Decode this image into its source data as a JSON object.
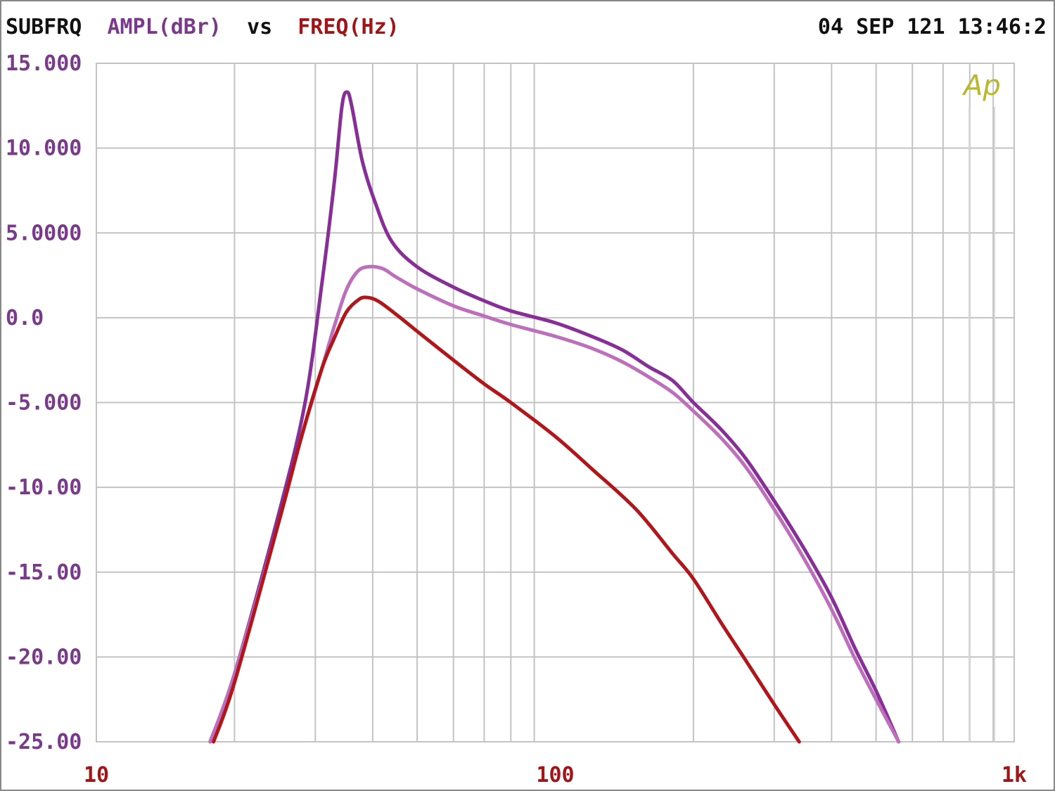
{
  "header": {
    "title_prefix": "SUBFRQ",
    "title_y": "AMPL(dBr)",
    "title_vs": "vs",
    "title_x": "FREQ(Hz)",
    "timestamp": "04 SEP 121 13:46:2"
  },
  "logo": "Ap",
  "colors": {
    "black": "#111111",
    "purple_text": "#7a3a8a",
    "red_text": "#a01518",
    "grid": "#c3c3c3",
    "logo": "#b8b830",
    "series": [
      "#872f97",
      "#bd6fbc",
      "#b0161a"
    ]
  },
  "chart_data": {
    "type": "line",
    "xscale": "log",
    "xlim": [
      10,
      1000
    ],
    "ylim": [
      -25,
      15
    ],
    "yticks": [
      {
        "value": 15,
        "label": "15.000"
      },
      {
        "value": 10,
        "label": "10.000"
      },
      {
        "value": 5,
        "label": "5.0000"
      },
      {
        "value": 0,
        "label": "0.0"
      },
      {
        "value": -5,
        "label": "-5.000"
      },
      {
        "value": -10,
        "label": "-10.00"
      },
      {
        "value": -15,
        "label": "-15.00"
      },
      {
        "value": -20,
        "label": "-20.00"
      },
      {
        "value": -25,
        "label": "-25.00"
      }
    ],
    "xticks": [
      {
        "value": 10,
        "label": "10"
      },
      {
        "value": 100,
        "label": "100"
      },
      {
        "value": 1000,
        "label": "1k"
      }
    ],
    "grid": true,
    "series": [
      {
        "color": "#872f97",
        "points": [
          [
            17.7,
            -25
          ],
          [
            20,
            -21
          ],
          [
            25,
            -11.5
          ],
          [
            28.5,
            -5
          ],
          [
            31,
            2
          ],
          [
            33,
            8
          ],
          [
            34.3,
            12.5
          ],
          [
            35.2,
            13.3
          ],
          [
            36,
            12.5
          ],
          [
            38,
            9.2
          ],
          [
            40.5,
            6.8
          ],
          [
            44,
            4.5
          ],
          [
            50,
            3
          ],
          [
            60,
            1.8
          ],
          [
            70,
            1
          ],
          [
            80,
            0.4
          ],
          [
            100,
            -0.3
          ],
          [
            120,
            -1.1
          ],
          [
            140,
            -1.9
          ],
          [
            160,
            -2.9
          ],
          [
            180,
            -3.7
          ],
          [
            200,
            -5
          ],
          [
            230,
            -6.6
          ],
          [
            260,
            -8.3
          ],
          [
            300,
            -10.8
          ],
          [
            350,
            -13.7
          ],
          [
            400,
            -16.5
          ],
          [
            450,
            -19.5
          ],
          [
            500,
            -22
          ],
          [
            560,
            -25
          ]
        ]
      },
      {
        "color": "#bd6fbc",
        "points": [
          [
            17.7,
            -25
          ],
          [
            20,
            -21
          ],
          [
            25,
            -12
          ],
          [
            28,
            -7
          ],
          [
            31,
            -3
          ],
          [
            33,
            -0.5
          ],
          [
            35,
            1.6
          ],
          [
            37,
            2.7
          ],
          [
            39,
            3
          ],
          [
            42,
            2.9
          ],
          [
            45,
            2.4
          ],
          [
            50,
            1.7
          ],
          [
            60,
            0.7
          ],
          [
            70,
            0.1
          ],
          [
            80,
            -0.4
          ],
          [
            100,
            -1.1
          ],
          [
            120,
            -1.8
          ],
          [
            140,
            -2.6
          ],
          [
            160,
            -3.5
          ],
          [
            180,
            -4.4
          ],
          [
            200,
            -5.5
          ],
          [
            230,
            -7.1
          ],
          [
            260,
            -8.8
          ],
          [
            300,
            -11.3
          ],
          [
            350,
            -14.3
          ],
          [
            400,
            -17.2
          ],
          [
            450,
            -20.1
          ],
          [
            500,
            -22.5
          ],
          [
            560,
            -25
          ]
        ]
      },
      {
        "color": "#b0161a",
        "points": [
          [
            18,
            -25
          ],
          [
            20,
            -21.5
          ],
          [
            25,
            -12
          ],
          [
            28,
            -7
          ],
          [
            31,
            -3
          ],
          [
            33,
            -1.2
          ],
          [
            35,
            0.3
          ],
          [
            37,
            1
          ],
          [
            38.5,
            1.2
          ],
          [
            41,
            1
          ],
          [
            45,
            0.2
          ],
          [
            50,
            -0.8
          ],
          [
            60,
            -2.5
          ],
          [
            70,
            -3.9
          ],
          [
            80,
            -5
          ],
          [
            100,
            -7
          ],
          [
            120,
            -8.9
          ],
          [
            150,
            -11.3
          ],
          [
            180,
            -13.9
          ],
          [
            200,
            -15.4
          ],
          [
            230,
            -18
          ],
          [
            260,
            -20.2
          ],
          [
            300,
            -22.8
          ],
          [
            340,
            -25
          ]
        ]
      }
    ]
  }
}
